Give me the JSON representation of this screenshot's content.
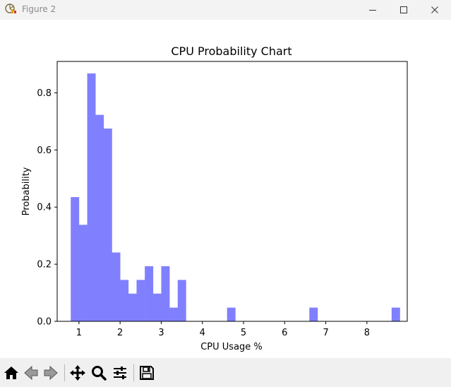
{
  "window": {
    "title": "Figure 2",
    "minimize_icon": "minimize-icon",
    "maximize_icon": "maximize-icon",
    "close_icon": "close-icon",
    "app_icon": "matplotlib-figure-icon"
  },
  "toolbar": {
    "buttons": [
      {
        "name": "home-button",
        "icon": "home-icon",
        "function": "Home"
      },
      {
        "name": "back-button",
        "icon": "back-arrow-icon",
        "function": "Back"
      },
      {
        "name": "forward-button",
        "icon": "forward-arrow-icon",
        "function": "Forward"
      },
      {
        "name": "pan-button",
        "icon": "move-arrows-icon",
        "function": "Pan"
      },
      {
        "name": "zoom-button",
        "icon": "magnifier-icon",
        "function": "Zoom"
      },
      {
        "name": "subplots-button",
        "icon": "sliders-icon",
        "function": "Subplots"
      },
      {
        "name": "save-button",
        "icon": "floppy-disk-icon",
        "function": "Save"
      }
    ]
  },
  "colors": {
    "bar_fill": "#8080ff",
    "axes_edge": "#000000",
    "titlebar": "#f3f3f3",
    "toolbar": "#f0f0f0"
  },
  "chart_data": {
    "type": "bar",
    "title": "CPU Probability Chart",
    "xlabel": "CPU Usage %",
    "ylabel": "Probability",
    "xlim": [
      0.47,
      8.98
    ],
    "ylim": [
      0,
      0.91
    ],
    "xticks": [
      1,
      2,
      3,
      4,
      5,
      6,
      7,
      8
    ],
    "yticks": [
      0.0,
      0.2,
      0.4,
      0.6,
      0.8
    ],
    "ytick_labels": [
      "0.0",
      "0.2",
      "0.4",
      "0.6",
      "0.8"
    ],
    "grid": false,
    "legend": "none",
    "bin_start": 0.8,
    "bin_width": 0.2,
    "values": [
      0.435,
      0.338,
      0.868,
      0.723,
      0.675,
      0.241,
      0.145,
      0.097,
      0.145,
      0.193,
      0.097,
      0.193,
      0.048,
      0.145,
      0,
      0,
      0,
      0,
      0,
      0.048,
      0,
      0,
      0,
      0,
      0,
      0,
      0,
      0,
      0,
      0.048,
      0,
      0,
      0,
      0,
      0,
      0,
      0,
      0,
      0,
      0.048
    ]
  }
}
